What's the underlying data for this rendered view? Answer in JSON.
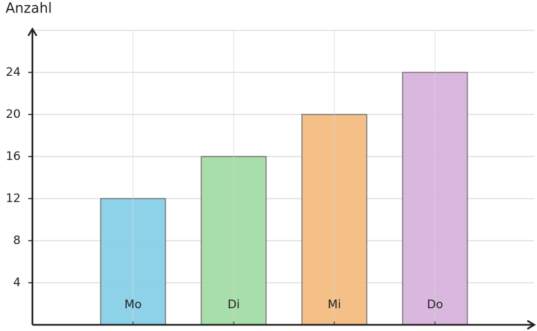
{
  "chart_data": {
    "type": "bar",
    "y_label": "Anzahl",
    "categories": [
      "Mo",
      "Di",
      "Mi",
      "Do"
    ],
    "values": [
      12,
      16,
      20,
      24
    ],
    "colors": [
      "#88d0e8",
      "#a3dca4",
      "#f3bd82",
      "#d8b3dc"
    ],
    "ylim": [
      0,
      28
    ],
    "yticks": [
      4,
      8,
      12,
      16,
      20,
      24
    ],
    "grid": true
  }
}
